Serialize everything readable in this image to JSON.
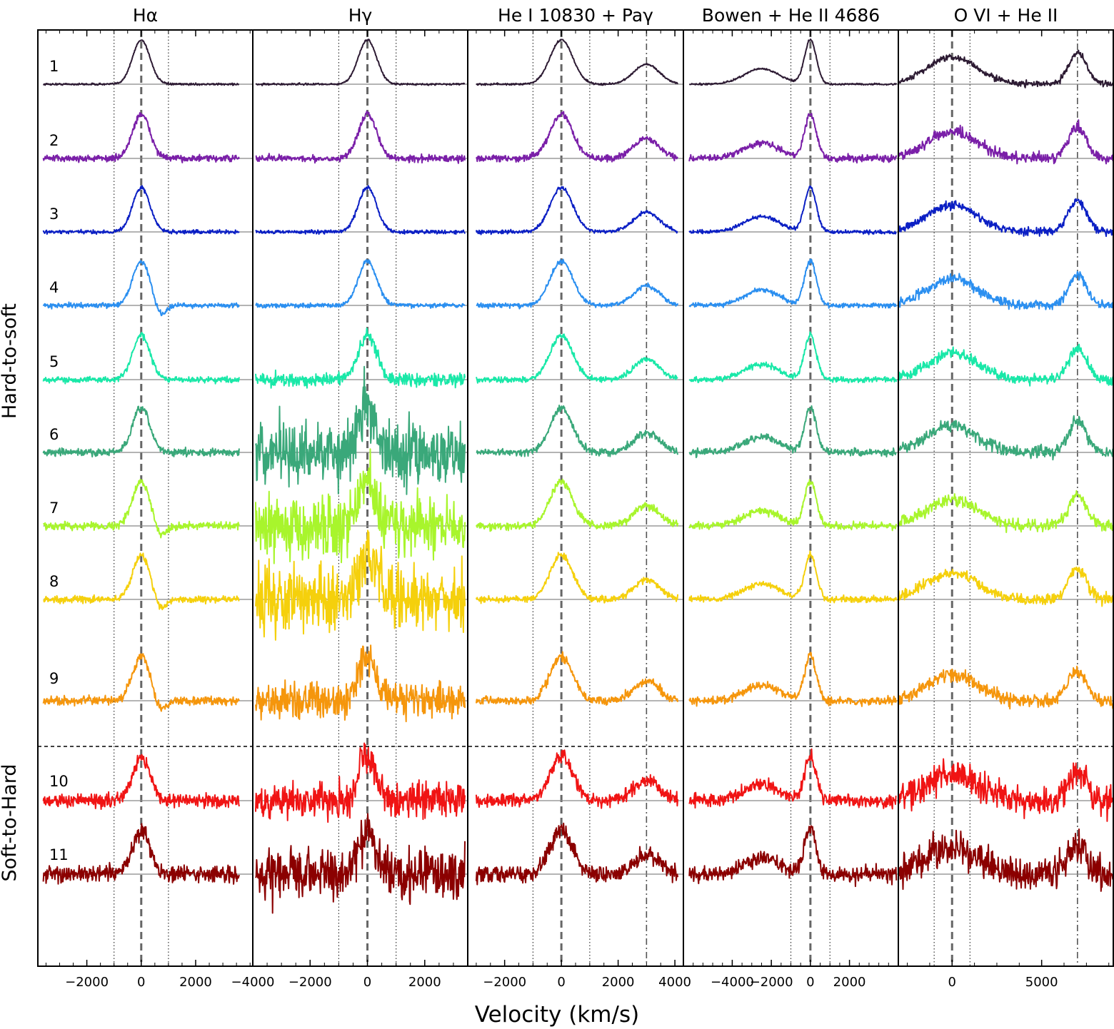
{
  "chart_data": {
    "type": "line",
    "xlabel": "Velocity (km/s)",
    "group_labels": [
      {
        "label": "Hard-to-soft",
        "rows": [
          1,
          9
        ]
      },
      {
        "label": "Soft-to-Hard",
        "rows": [
          10,
          11
        ]
      }
    ],
    "spectrum_ids": [
      "1",
      "2",
      "3",
      "4",
      "5",
      "6",
      "7",
      "8",
      "9",
      "10",
      "11"
    ],
    "colors": [
      "#2d1b33",
      "#7a1fa8",
      "#0b1fc4",
      "#2b8ff0",
      "#19e8a8",
      "#3aa87a",
      "#a8f52c",
      "#f5d00c",
      "#f5960c",
      "#f01414",
      "#8b0000"
    ],
    "panels": [
      {
        "title": "Hα",
        "xlim": [
          -3800,
          4100
        ],
        "xticks": [
          -2000,
          0,
          2000
        ],
        "tick_labels": [
          "−2000",
          "0",
          "2000"
        ],
        "rest_velocity": 0,
        "dotted_markers": [
          -1000,
          1000
        ],
        "dashdot_markers": [],
        "data_range": [
          -3600,
          3600
        ]
      },
      {
        "title": "Hγ",
        "xlim": [
          -4000,
          3500
        ],
        "xticks": [
          -4000,
          -2000,
          0,
          2000
        ],
        "tick_labels": [
          "−4000",
          "−2000",
          "0",
          "2000"
        ],
        "rest_velocity": 0,
        "dotted_markers": [
          -1000,
          1000
        ],
        "dashdot_markers": [],
        "data_range": [
          -3900,
          3400
        ]
      },
      {
        "title": "He I 10830 + Paγ",
        "xlim": [
          -3300,
          4300
        ],
        "xticks": [
          -2000,
          0,
          2000,
          4000
        ],
        "tick_labels": [
          "−2000",
          "0",
          "2000",
          "4000"
        ],
        "rest_velocity": 0,
        "dotted_markers": [
          -1000,
          1000
        ],
        "dashdot_markers": [
          3000
        ],
        "data_range": [
          -3000,
          4100
        ]
      },
      {
        "title": "Bowen + He II 4686",
        "xlim": [
          -6500,
          4500
        ],
        "xticks": [
          -4000,
          -2000,
          0,
          2000
        ],
        "tick_labels": [
          "−4000",
          "−2000",
          "0",
          "2000"
        ],
        "rest_velocity": 0,
        "dotted_markers": [
          -1000,
          1000
        ],
        "dashdot_markers": [],
        "data_range": [
          -6200,
          4400
        ]
      },
      {
        "title": "O VI + He II",
        "xlim": [
          -3000,
          9000
        ],
        "xticks": [
          0,
          5000
        ],
        "tick_labels": [
          "0",
          "5000"
        ],
        "rest_velocity": 0,
        "dotted_markers": [
          -1000,
          1000
        ],
        "dashdot_markers": [
          7000
        ],
        "data_range": [
          -3000,
          9000
        ]
      }
    ],
    "spectra_shapes": {
      "Hα": [
        {
          "center": 0,
          "width": 320,
          "amplitude": 1.0,
          "note": "single peak"
        }
      ],
      "Hγ": [
        {
          "center": 0,
          "width": 320,
          "amplitude": 1.0
        }
      ],
      "He I 10830 + Paγ": [
        {
          "center": 0,
          "width": 400,
          "amplitude": 1.0
        },
        {
          "center": 3000,
          "width": 450,
          "amplitude": 0.45
        }
      ],
      "Bowen + He II 4686": [
        {
          "center": -2500,
          "width": 900,
          "amplitude": 0.35
        },
        {
          "center": 0,
          "width": 300,
          "amplitude": 1.0
        }
      ],
      "O VI + He II": [
        {
          "center": 0,
          "width": 1400,
          "amplitude": 0.6
        },
        {
          "center": 7000,
          "width": 500,
          "amplitude": 0.7
        }
      ]
    }
  }
}
